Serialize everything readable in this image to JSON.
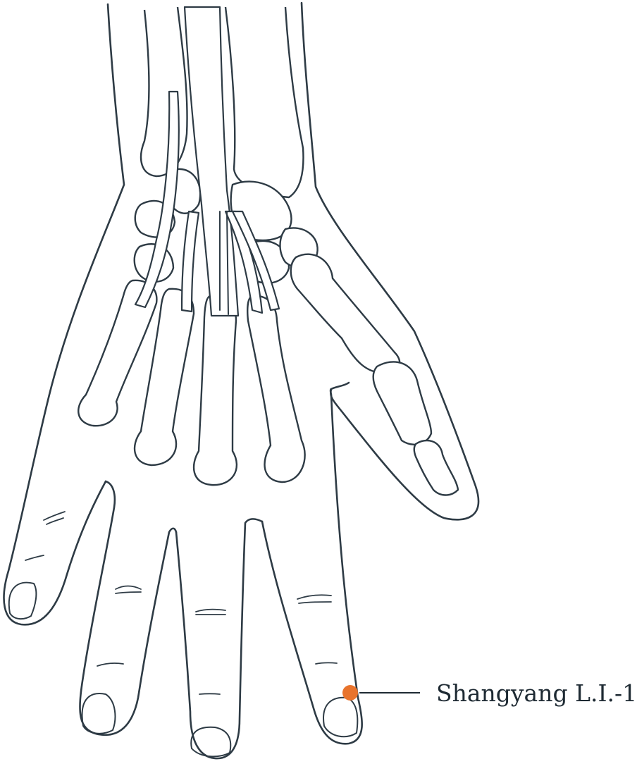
{
  "acupoint": {
    "label": "Shangyang L.I.-1",
    "marker_color": "#e8732c"
  },
  "illustration": {
    "subject": "hand-dorsal-anatomy",
    "line_color": "#2e3b45"
  }
}
